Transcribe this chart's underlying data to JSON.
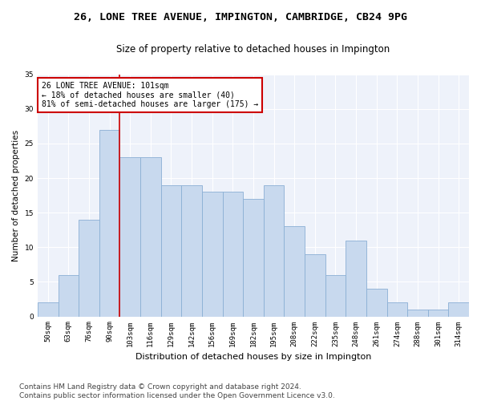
{
  "title": "26, LONE TREE AVENUE, IMPINGTON, CAMBRIDGE, CB24 9PG",
  "subtitle": "Size of property relative to detached houses in Impington",
  "xlabel": "Distribution of detached houses by size in Impington",
  "ylabel": "Number of detached properties",
  "categories": [
    "50sqm",
    "63sqm",
    "76sqm",
    "90sqm",
    "103sqm",
    "116sqm",
    "129sqm",
    "142sqm",
    "156sqm",
    "169sqm",
    "182sqm",
    "195sqm",
    "208sqm",
    "222sqm",
    "235sqm",
    "248sqm",
    "261sqm",
    "274sqm",
    "288sqm",
    "301sqm",
    "314sqm"
  ],
  "values": [
    2,
    6,
    14,
    27,
    23,
    23,
    19,
    19,
    18,
    18,
    17,
    19,
    13,
    9,
    6,
    11,
    4,
    2,
    1,
    1,
    2
  ],
  "bar_color": "#c8d9ee",
  "bar_edge_color": "#8aafd4",
  "vline_color": "#cc0000",
  "vline_pos": 3.5,
  "annotation_text": "26 LONE TREE AVENUE: 101sqm\n← 18% of detached houses are smaller (40)\n81% of semi-detached houses are larger (175) →",
  "annotation_box_color": "#ffffff",
  "annotation_box_edge": "#cc0000",
  "ylim": [
    0,
    35
  ],
  "yticks": [
    0,
    5,
    10,
    15,
    20,
    25,
    30,
    35
  ],
  "footer": "Contains HM Land Registry data © Crown copyright and database right 2024.\nContains public sector information licensed under the Open Government Licence v3.0.",
  "background_color": "#eef2fa",
  "grid_color": "#ffffff",
  "title_fontsize": 9.5,
  "subtitle_fontsize": 8.5,
  "xlabel_fontsize": 8,
  "ylabel_fontsize": 7.5,
  "tick_fontsize": 6.5,
  "annot_fontsize": 7,
  "footer_fontsize": 6.5
}
